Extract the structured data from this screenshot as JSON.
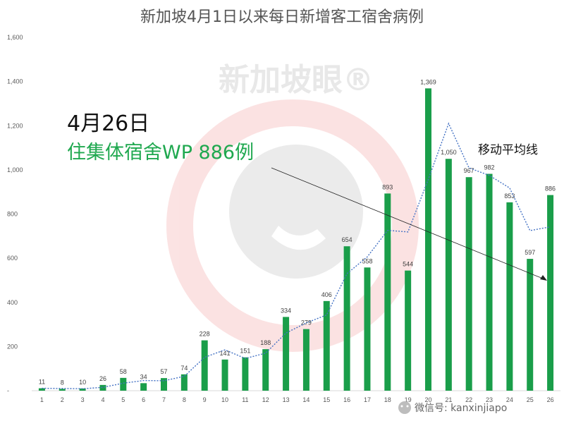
{
  "chart_data": {
    "type": "bar",
    "title": "新加坡4月1日以来每日新增客工宿舍病例",
    "categories": [
      "1",
      "2",
      "3",
      "4",
      "5",
      "6",
      "7",
      "8",
      "9",
      "10",
      "11",
      "12",
      "13",
      "14",
      "15",
      "16",
      "17",
      "18",
      "19",
      "20",
      "21",
      "22",
      "23",
      "24",
      "25",
      "26"
    ],
    "values": [
      11,
      8,
      10,
      26,
      58,
      34,
      57,
      74,
      228,
      141,
      151,
      188,
      334,
      279,
      406,
      654,
      558,
      893,
      544,
      1369,
      1050,
      967,
      982,
      853,
      597,
      886
    ],
    "series": [
      {
        "name": "移动平均线",
        "type": "line",
        "style": "dotted",
        "values": [
          11,
          10,
          9,
          15,
          34,
          46,
          45,
          65,
          151,
          185,
          146,
          170,
          261,
          307,
          343,
          530,
          606,
          726,
          719,
          957,
          1210,
          1009,
          975,
          918,
          725,
          742
        ]
      }
    ],
    "ylim": [
      0,
      1600
    ],
    "yticks": [
      "-",
      "200",
      "400",
      "600",
      "800",
      "1,000",
      "1,200",
      "1,400",
      "1,600"
    ],
    "bar_labels": [
      "11",
      "8",
      "10",
      "26",
      "58",
      "34",
      "57",
      "74",
      "228",
      "141",
      "151",
      "188",
      "334",
      "279",
      "406",
      "654",
      "558",
      "893",
      "544",
      "1,369",
      "1,050",
      "967",
      "982",
      "853",
      "597",
      "886"
    ],
    "grid": false,
    "bar_color": "#1a9e4a",
    "line_color": "#4472c4",
    "annotation": {
      "date": "4月26日",
      "text": "住集体宿舍WP 886例",
      "text_color": "#1fa84f"
    },
    "ma_label": "移动平均线"
  },
  "watermark": {
    "text": "新加坡眼®",
    "color": "#e63b3b"
  },
  "footer": {
    "text": "微信号: kanxinjiapo"
  }
}
